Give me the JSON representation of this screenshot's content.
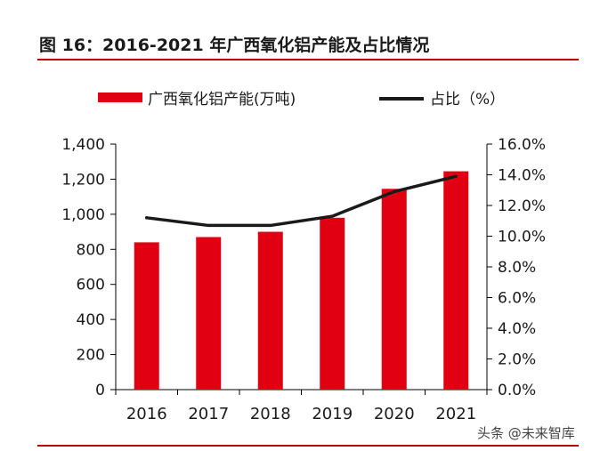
{
  "header": {
    "title": "图 16：2016-2021 年广西氧化铝产能及占比情况"
  },
  "watermark": {
    "text": "头条 @未来智库"
  },
  "colors": {
    "bar": "#e00012",
    "line": "#1a1a1a",
    "rule": "#c00000",
    "axis": "#000000"
  },
  "chart_data": {
    "type": "bar",
    "title": "图 16：2016-2021 年广西氧化铝产能及占比情况",
    "categories": [
      "2016",
      "2017",
      "2018",
      "2019",
      "2020",
      "2021"
    ],
    "series": [
      {
        "name": "广西氧化铝产能(万吨)",
        "type": "bar",
        "axis": "left",
        "values": [
          840,
          870,
          900,
          980,
          1145,
          1245
        ]
      },
      {
        "name": "占比（%）",
        "type": "line",
        "axis": "right",
        "values": [
          11.2,
          10.7,
          10.7,
          11.3,
          12.9,
          13.9
        ]
      }
    ],
    "left_axis": {
      "ylim": [
        0,
        1400
      ],
      "ticks": [
        "0",
        "200",
        "400",
        "600",
        "800",
        "1,000",
        "1,200",
        "1,400"
      ]
    },
    "right_axis": {
      "ylim": [
        0,
        16
      ],
      "ticks": [
        "0.0%",
        "2.0%",
        "4.0%",
        "6.0%",
        "8.0%",
        "10.0%",
        "12.0%",
        "14.0%",
        "16.0%"
      ]
    },
    "legend": {
      "position": "top",
      "entries": [
        "广西氧化铝产能(万吨)",
        "占比（%）"
      ]
    },
    "grid": false
  }
}
